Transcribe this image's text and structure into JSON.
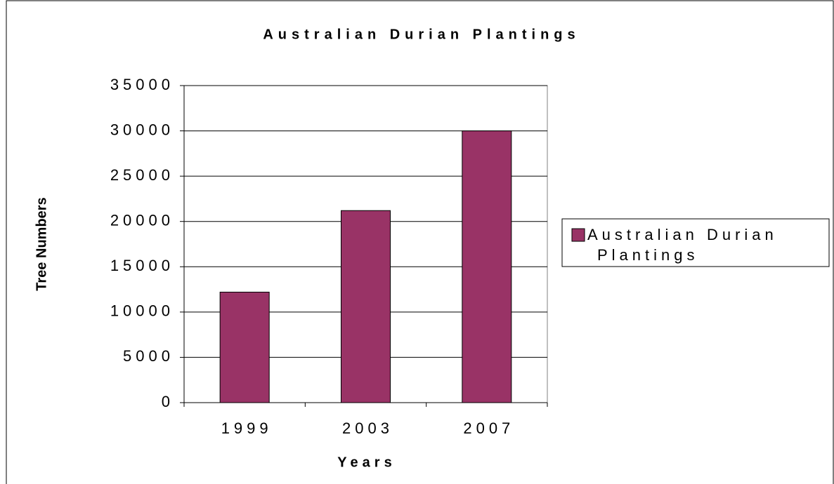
{
  "chart_data": {
    "type": "bar",
    "title": "Australian Durian Plantings",
    "x_label": "Years",
    "y_label": "Tree Numbers",
    "categories": [
      "1999",
      "2003",
      "2007"
    ],
    "series": [
      {
        "name": "Australian Durian Plantings",
        "color": "#993366",
        "values": [
          12200,
          21200,
          30000
        ]
      }
    ],
    "ylim": [
      0,
      35000
    ],
    "yticks": [
      0,
      5000,
      10000,
      15000,
      20000,
      25000,
      30000,
      35000
    ],
    "grid": true,
    "legend": "right"
  }
}
